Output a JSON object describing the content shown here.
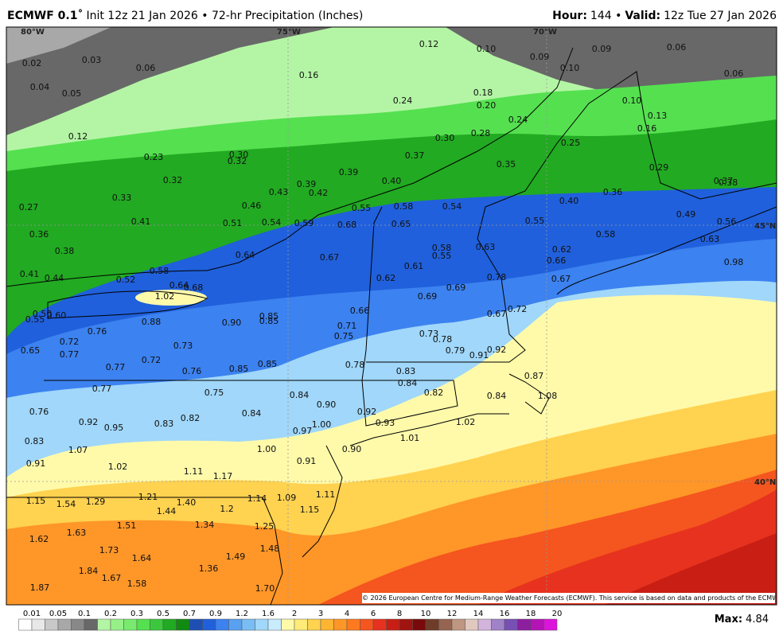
{
  "header": {
    "title_bold": "ECMWF 0.1˚",
    "title": "Init 12z 21 Jan 2026 • 72-hr Precipitation (Inches)",
    "right": [
      "Hour:",
      "144 •",
      "Valid:",
      "12z Tue 27 Jan 2026"
    ]
  },
  "map": {
    "lon_labels": [
      "80°W",
      "75°W",
      "70°W"
    ],
    "lat_labels": [
      "45°N",
      "40°N"
    ],
    "values": [
      "0.02",
      "0.03",
      "0.06",
      "0.04",
      "0.05",
      "0.12",
      "0.16",
      "0.12",
      "0.10",
      "0.09",
      "0.09",
      "0.06",
      "0.10",
      "0.06",
      "0.24",
      "0.18",
      "0.20",
      "0.24",
      "0.10",
      "0.13",
      "0.16",
      "0.23",
      "0.30",
      "0.32",
      "0.30",
      "0.28",
      "0.25",
      "0.37",
      "0.35",
      "0.29",
      "0.32",
      "0.39",
      "0.40",
      "0.33",
      "0.43",
      "0.39",
      "0.42",
      "0.36",
      "0.37",
      "0.38",
      "0.27",
      "0.46",
      "0.55",
      "0.58",
      "0.54",
      "0.40",
      "0.41",
      "0.51",
      "0.54",
      "0.59",
      "0.68",
      "0.65",
      "0.55",
      "0.49",
      "0.56",
      "0.36",
      "0.58",
      "0.63",
      "0.38",
      "0.64",
      "0.67",
      "0.58",
      "0.55",
      "0.63",
      "0.62",
      "0.66",
      "0.98",
      "0.61",
      "0.41",
      "0.44",
      "0.52",
      "0.58",
      "0.64",
      "0.68",
      "0.62",
      "0.78",
      "0.67",
      "0.69",
      "1.02",
      "0.69",
      "0.72",
      "0.50",
      "0.60",
      "0.55",
      "0.66",
      "0.67",
      "0.88",
      "0.90",
      "0.85",
      "0.85",
      "0.76",
      "0.71",
      "0.75",
      "0.73",
      "0.78",
      "0.72",
      "0.73",
      "0.79",
      "0.91",
      "0.92",
      "0.65",
      "0.77",
      "0.72",
      "0.78",
      "0.77",
      "0.76",
      "0.85",
      "0.85",
      "0.83",
      "0.87",
      "0.84",
      "0.77",
      "0.75",
      "0.84",
      "0.82",
      "0.84",
      "1.08",
      "0.90",
      "0.76",
      "0.92",
      "0.92",
      "0.84",
      "0.82",
      "0.83",
      "0.93",
      "1.02",
      "0.95",
      "0.97",
      "1.00",
      "0.83",
      "1.01",
      "1.07",
      "1.00",
      "0.90",
      "0.91",
      "0.91",
      "1.02",
      "1.11",
      "1.17",
      "1.15",
      "1.54",
      "1.29",
      "1.21",
      "1.40",
      "1.44",
      "1.2",
      "1.14",
      "1.09",
      "1.11",
      "1.15",
      "1.51",
      "1.34",
      "1.25",
      "1.63",
      "1.62",
      "1.73",
      "1.48",
      "1.64",
      "1.49",
      "1.84",
      "1.67",
      "1.58",
      "1.36",
      "1.87",
      "1.70"
    ]
  },
  "legend": {
    "levels": [
      0.01,
      0.05,
      0.1,
      0.2,
      0.3,
      0.5,
      0.7,
      0.9,
      1.2,
      1.6,
      2,
      3,
      4,
      6,
      8,
      10,
      12,
      14,
      16,
      18,
      20
    ],
    "colors": [
      "#ffffff",
      "#e8e8e8",
      "#c8c8c8",
      "#a8a8a8",
      "#888888",
      "#686868",
      "#b4f5a5",
      "#96f087",
      "#78eb6e",
      "#55e050",
      "#3cc83c",
      "#22aa22",
      "#108a10",
      "#1e50b4",
      "#2060dc",
      "#3c82f0",
      "#5aa0f0",
      "#78bef5",
      "#a0d7fa",
      "#c8ebfd",
      "#fffaaa",
      "#ffeb78",
      "#ffd250",
      "#ffb432",
      "#ff9628",
      "#ff7a1e",
      "#f5551e",
      "#e6321e",
      "#c81e14",
      "#a01410",
      "#7a0a0a",
      "#6e3c28",
      "#966450",
      "#be9682",
      "#e1c8be",
      "#d2b4dc",
      "#a082c8",
      "#7850b4",
      "#8c1ea0",
      "#b414b4",
      "#dc14dc"
    ]
  },
  "footer": {
    "max": [
      "Max:",
      "4.84"
    ],
    "copyright": "© 2026 European Centre for Medium-Range Weather Forecasts (ECMWF). This service is based on data and products of the ECMWF."
  }
}
